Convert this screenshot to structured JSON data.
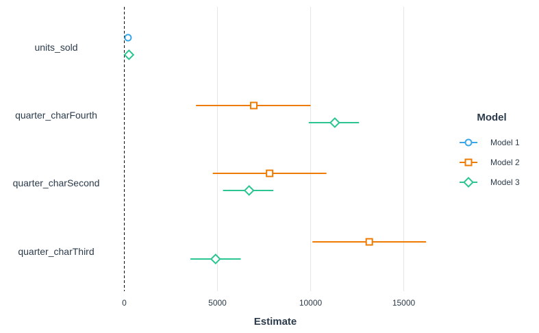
{
  "chart_data": {
    "type": "scatter",
    "subtype": "coefficient-plot",
    "xlabel": "Estimate",
    "xlim": [
      -700,
      17000
    ],
    "xticks": [
      0,
      5000,
      10000,
      15000
    ],
    "xtick_labels": [
      "0",
      "5000",
      "10000",
      "15000"
    ],
    "categories": [
      "units_sold",
      "quarter_charFourth",
      "quarter_charSecond",
      "quarter_charThird"
    ],
    "reference_line": 0,
    "grid": "vertical",
    "legend": {
      "title": "Model",
      "position": "right"
    },
    "series": [
      {
        "name": "Model 1",
        "color": "#3aa6e8",
        "marker": "circle",
        "points": [
          {
            "category": "units_sold",
            "estimate": 200,
            "low": 200,
            "high": 200
          }
        ]
      },
      {
        "name": "Model 2",
        "color": "#ee7a00",
        "marker": "square",
        "points": [
          {
            "category": "quarter_charFourth",
            "estimate": 6950,
            "low": 3850,
            "high": 10000
          },
          {
            "category": "quarter_charSecond",
            "estimate": 7800,
            "low": 4750,
            "high": 10850
          },
          {
            "category": "quarter_charThird",
            "estimate": 13150,
            "low": 10100,
            "high": 16200
          }
        ]
      },
      {
        "name": "Model 3",
        "color": "#2bc592",
        "marker": "diamond",
        "points": [
          {
            "category": "units_sold",
            "estimate": 250,
            "low": 250,
            "high": 250
          },
          {
            "category": "quarter_charFourth",
            "estimate": 11300,
            "low": 9900,
            "high": 12600
          },
          {
            "category": "quarter_charSecond",
            "estimate": 6700,
            "low": 5300,
            "high": 8000
          },
          {
            "category": "quarter_charThird",
            "estimate": 4900,
            "low": 3550,
            "high": 6250
          }
        ]
      }
    ]
  }
}
